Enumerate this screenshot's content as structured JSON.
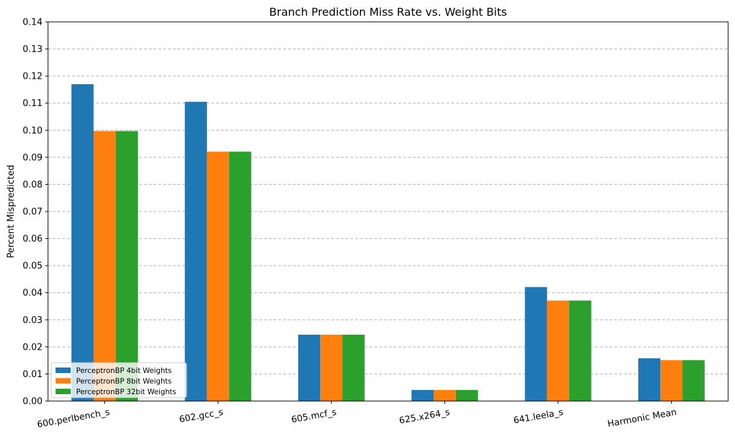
{
  "chart_data": {
    "type": "bar",
    "title": "Branch Prediction Miss Rate vs. Weight Bits",
    "xlabel": "",
    "ylabel": "Percent Mispredicted",
    "ylim": [
      0,
      0.14
    ],
    "yticks": [
      "0.00",
      "0.01",
      "0.02",
      "0.03",
      "0.04",
      "0.05",
      "0.06",
      "0.07",
      "0.08",
      "0.09",
      "0.10",
      "0.11",
      "0.12",
      "0.13",
      "0.14"
    ],
    "categories": [
      "600.perlbench_s",
      "602.gcc_s",
      "605.mcf_s",
      "625.x264_s",
      "641.leela_s",
      "Harmonic Mean"
    ],
    "series": [
      {
        "name": "PerceptronBP 4bit Weights",
        "color": "#1f77b4",
        "values": [
          0.117,
          0.1105,
          0.0245,
          0.0041,
          0.0421,
          0.0158
        ]
      },
      {
        "name": "PerceptronBP 8bit Weights",
        "color": "#ff7f0e",
        "values": [
          0.0997,
          0.0921,
          0.0245,
          0.0041,
          0.0371,
          0.0151
        ]
      },
      {
        "name": "PerceptronBP 32bit Weights",
        "color": "#2ca02c",
        "values": [
          0.0997,
          0.0921,
          0.0245,
          0.0041,
          0.0371,
          0.0151
        ]
      }
    ],
    "grid": "y-dashed",
    "legend_position": "bottom-left"
  }
}
